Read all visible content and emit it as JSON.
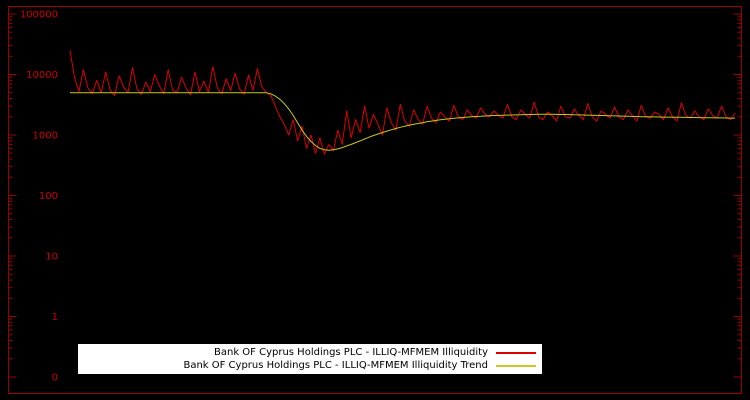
{
  "chart_data": {
    "type": "line",
    "title": "",
    "xlabel": "",
    "ylabel": "",
    "yscale": "log",
    "ylim": [
      1,
      100000
    ],
    "y_ticks": [
      "100000",
      "10000",
      "1000",
      "100",
      "10",
      "1",
      "0"
    ],
    "x_ticks": [],
    "grid": false,
    "background": "#000000",
    "frame_color": "#990000",
    "tick_label_color": "#cc0000",
    "legend": {
      "position": "bottom-center",
      "background": "#ffffff",
      "text_color": "#000000"
    },
    "series": [
      {
        "name": "Bank OF Cyprus Holdings PLC - ILLIQ-MFMEM Illiquidity",
        "color": "#dd0000",
        "values": [
          25000,
          9000,
          5200,
          12000,
          6000,
          4800,
          8000,
          5000,
          11000,
          5500,
          4500,
          9500,
          6200,
          5000,
          13000,
          5800,
          4700,
          7500,
          5200,
          10000,
          6500,
          4800,
          12000,
          5500,
          5000,
          9000,
          6000,
          4600,
          11000,
          5200,
          7800,
          5000,
          13500,
          6000,
          4800,
          8500,
          5400,
          10500,
          5800,
          4700,
          9800,
          5500,
          12500,
          6200,
          5000,
          4500,
          3000,
          2000,
          1500,
          1000,
          1800,
          800,
          1400,
          600,
          1000,
          500,
          900,
          480,
          700,
          550,
          1200,
          700,
          2500,
          900,
          1800,
          1100,
          3000,
          1300,
          2200,
          1500,
          1000,
          2800,
          1600,
          1200,
          3200,
          1700,
          1400,
          2600,
          1800,
          1500,
          3000,
          1900,
          1600,
          2400,
          2000,
          1700,
          3100,
          2000,
          1800,
          2600,
          2100,
          1900,
          2800,
          2200,
          2000,
          2500,
          2100,
          1900,
          3200,
          2000,
          1800,
          2600,
          2200,
          1900,
          3500,
          2000,
          1800,
          2400,
          2100,
          1700,
          3000,
          2000,
          1900,
          2700,
          2100,
          1800,
          3300,
          2000,
          1700,
          2500,
          2200,
          1900,
          2900,
          2000,
          1800,
          2600,
          2100,
          1700,
          3100,
          2000,
          1900,
          2400,
          2200,
          1800,
          2800,
          2000,
          1700,
          3400,
          2100,
          1900,
          2500,
          2000,
          1800,
          2700,
          2100,
          1900,
          3000,
          2000,
          1800,
          2300
        ]
      },
      {
        "name": "Bank OF Cyprus Holdings PLC - ILLIQ-MFMEM Illiquidity Trend",
        "color": "#c8c826",
        "values": [
          5000,
          5000,
          5000,
          5000,
          5000,
          5000,
          5000,
          5000,
          5000,
          5000,
          5000,
          5000,
          5000,
          5000,
          5000,
          5000,
          5000,
          5000,
          5000,
          5000,
          5000,
          5000,
          5000,
          5000,
          5000,
          5000,
          5000,
          5000,
          5000,
          5000,
          5000,
          5000,
          5000,
          5000,
          5000,
          5000,
          5000,
          5000,
          5000,
          5000,
          5000,
          5000,
          5000,
          5000,
          5000,
          4800,
          4400,
          3900,
          3300,
          2700,
          2100,
          1600,
          1200,
          950,
          780,
          670,
          600,
          570,
          560,
          570,
          590,
          620,
          660,
          700,
          750,
          800,
          860,
          920,
          980,
          1040,
          1100,
          1160,
          1220,
          1280,
          1340,
          1400,
          1450,
          1500,
          1550,
          1600,
          1650,
          1700,
          1740,
          1780,
          1820,
          1860,
          1890,
          1920,
          1950,
          1980,
          2000,
          2020,
          2040,
          2060,
          2080,
          2100,
          2110,
          2120,
          2130,
          2140,
          2150,
          2160,
          2170,
          2180,
          2190,
          2200,
          2200,
          2200,
          2195,
          2190,
          2185,
          2180,
          2170,
          2160,
          2150,
          2140,
          2130,
          2120,
          2110,
          2100,
          2090,
          2080,
          2070,
          2060,
          2050,
          2040,
          2030,
          2020,
          2010,
          2000,
          1995,
          1990,
          1985,
          1980,
          1975,
          1970,
          1965,
          1960,
          1955,
          1950,
          1945,
          1940,
          1935,
          1930,
          1925,
          1920,
          1915,
          1910,
          1905,
          1900
        ]
      }
    ]
  }
}
